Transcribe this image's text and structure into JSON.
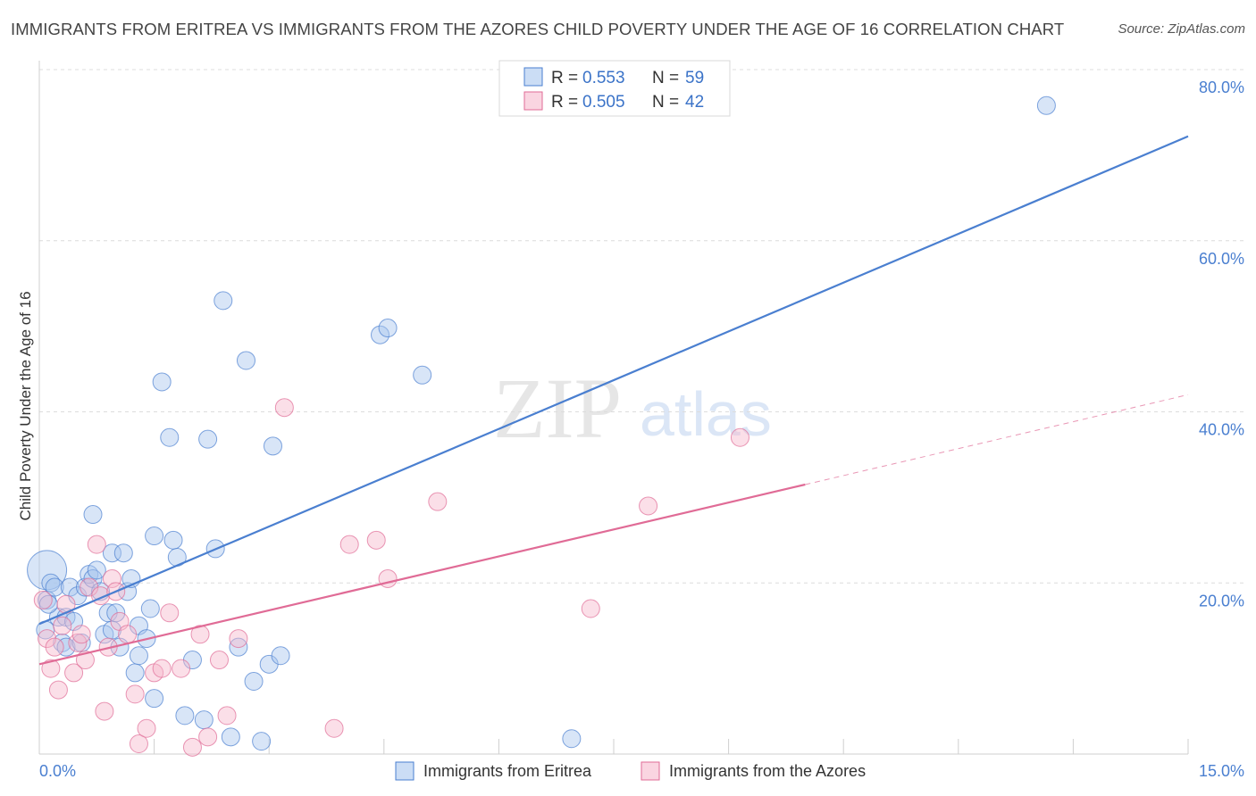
{
  "chart_data": {
    "type": "scatter",
    "title": "IMMIGRANTS FROM ERITREA VS IMMIGRANTS FROM THE AZORES CHILD POVERTY UNDER THE AGE OF 16 CORRELATION CHART",
    "source": "Source: ZipAtlas.com",
    "ylabel": "Child Poverty Under the Age of 16",
    "xlim": [
      0,
      15
    ],
    "ylim": [
      0,
      80
    ],
    "x_tick_labels": [
      "0.0%",
      "15.0%"
    ],
    "y_ticks": [
      {
        "value": 80,
        "label": "80.0%"
      },
      {
        "value": 60,
        "label": "60.0%"
      },
      {
        "value": 40,
        "label": "40.0%"
      },
      {
        "value": 20,
        "label": "20.0%"
      }
    ],
    "watermark": {
      "zip": "ZIP",
      "atlas": "atlas"
    },
    "legend": [
      {
        "r_label": "R =",
        "r_value": "0.553",
        "n_label": "N =",
        "n_value": "59"
      },
      {
        "r_label": "R =",
        "r_value": "0.505",
        "n_label": "N =",
        "n_value": "42"
      }
    ],
    "series": [
      {
        "name": "Immigrants from Eritrea",
        "color": "#4a7fd0",
        "fill": "#a9c6ee",
        "trend": {
          "x0": 0,
          "y0": 15.2,
          "x1": 15,
          "y1": 72.2,
          "dashed_from": null
        },
        "points": [
          [
            0.1,
            21.5,
            22
          ],
          [
            0.1,
            18.0,
            10
          ],
          [
            0.15,
            20.0,
            10
          ],
          [
            0.2,
            19.5,
            10
          ],
          [
            0.25,
            16.0,
            10
          ],
          [
            0.3,
            13.0,
            10
          ],
          [
            0.35,
            16.0,
            10
          ],
          [
            0.35,
            12.5,
            10
          ],
          [
            0.4,
            19.5,
            10
          ],
          [
            0.45,
            15.5,
            10
          ],
          [
            0.5,
            18.5,
            10
          ],
          [
            0.55,
            13.0,
            10
          ],
          [
            0.6,
            19.5,
            10
          ],
          [
            0.65,
            21.0,
            10
          ],
          [
            0.7,
            20.5,
            10
          ],
          [
            0.75,
            21.5,
            10
          ],
          [
            0.8,
            19.0,
            10
          ],
          [
            0.85,
            14.0,
            10
          ],
          [
            0.7,
            28.0,
            10
          ],
          [
            0.9,
            16.5,
            10
          ],
          [
            0.95,
            14.5,
            10
          ],
          [
            0.95,
            23.5,
            10
          ],
          [
            1.0,
            16.5,
            10
          ],
          [
            1.05,
            12.5,
            10
          ],
          [
            1.1,
            23.5,
            10
          ],
          [
            1.15,
            19.0,
            10
          ],
          [
            1.2,
            20.5,
            10
          ],
          [
            1.25,
            9.5,
            10
          ],
          [
            1.3,
            11.5,
            10
          ],
          [
            1.3,
            15.0,
            10
          ],
          [
            1.4,
            13.5,
            10
          ],
          [
            1.45,
            17.0,
            10
          ],
          [
            1.5,
            25.5,
            10
          ],
          [
            1.6,
            43.5,
            10
          ],
          [
            1.7,
            37.0,
            10
          ],
          [
            1.75,
            25.0,
            10
          ],
          [
            1.8,
            23.0,
            10
          ],
          [
            1.5,
            6.5,
            10
          ],
          [
            1.9,
            4.5,
            10
          ],
          [
            2.0,
            11.0,
            10
          ],
          [
            2.15,
            4.0,
            10
          ],
          [
            2.2,
            36.8,
            10
          ],
          [
            2.3,
            24.0,
            10
          ],
          [
            2.4,
            53.0,
            10
          ],
          [
            2.5,
            2.0,
            10
          ],
          [
            2.6,
            12.5,
            10
          ],
          [
            2.7,
            46.0,
            10
          ],
          [
            2.8,
            8.5,
            10
          ],
          [
            2.9,
            1.5,
            10
          ],
          [
            3.0,
            10.5,
            10
          ],
          [
            3.05,
            36.0,
            10
          ],
          [
            3.15,
            11.5,
            10
          ],
          [
            4.45,
            49.0,
            10
          ],
          [
            4.55,
            49.8,
            10
          ],
          [
            5.0,
            44.3,
            10
          ],
          [
            6.95,
            1.8,
            10
          ],
          [
            13.15,
            75.8,
            10
          ],
          [
            0.08,
            14.5,
            10
          ],
          [
            0.12,
            17.5,
            10
          ]
        ]
      },
      {
        "name": "Immigrants from the Azores",
        "color": "#e06b96",
        "fill": "#f7b9cd",
        "trend": {
          "x0": 0,
          "y0": 10.5,
          "x1": 15,
          "y1": 42.0,
          "dashed_from": 10.0
        },
        "points": [
          [
            0.05,
            18.0,
            10
          ],
          [
            0.1,
            13.5,
            10
          ],
          [
            0.15,
            10.0,
            10
          ],
          [
            0.2,
            12.5,
            10
          ],
          [
            0.25,
            7.5,
            10
          ],
          [
            0.3,
            15.0,
            10
          ],
          [
            0.35,
            17.5,
            10
          ],
          [
            0.45,
            9.5,
            10
          ],
          [
            0.5,
            13.0,
            10
          ],
          [
            0.55,
            14.0,
            10
          ],
          [
            0.6,
            11.0,
            10
          ],
          [
            0.65,
            19.5,
            10
          ],
          [
            0.75,
            24.5,
            10
          ],
          [
            0.8,
            18.5,
            10
          ],
          [
            0.85,
            5.0,
            10
          ],
          [
            0.9,
            12.5,
            10
          ],
          [
            0.95,
            20.5,
            10
          ],
          [
            1.0,
            19.0,
            10
          ],
          [
            1.05,
            15.5,
            10
          ],
          [
            1.15,
            14.0,
            10
          ],
          [
            1.25,
            7.0,
            10
          ],
          [
            1.3,
            1.2,
            10
          ],
          [
            1.4,
            3.0,
            10
          ],
          [
            1.5,
            9.5,
            10
          ],
          [
            1.6,
            10.0,
            10
          ],
          [
            1.7,
            16.5,
            10
          ],
          [
            1.85,
            10.0,
            10
          ],
          [
            2.0,
            0.8,
            10
          ],
          [
            2.1,
            14.0,
            10
          ],
          [
            2.2,
            2.0,
            10
          ],
          [
            2.35,
            11.0,
            10
          ],
          [
            2.45,
            4.5,
            10
          ],
          [
            2.6,
            13.5,
            10
          ],
          [
            3.2,
            40.5,
            10
          ],
          [
            3.85,
            3.0,
            10
          ],
          [
            4.05,
            24.5,
            10
          ],
          [
            4.4,
            25.0,
            10
          ],
          [
            4.55,
            20.5,
            10
          ],
          [
            5.2,
            29.5,
            10
          ],
          [
            7.2,
            17.0,
            10
          ],
          [
            7.95,
            29.0,
            10
          ],
          [
            9.15,
            37.0,
            10
          ]
        ]
      }
    ]
  }
}
